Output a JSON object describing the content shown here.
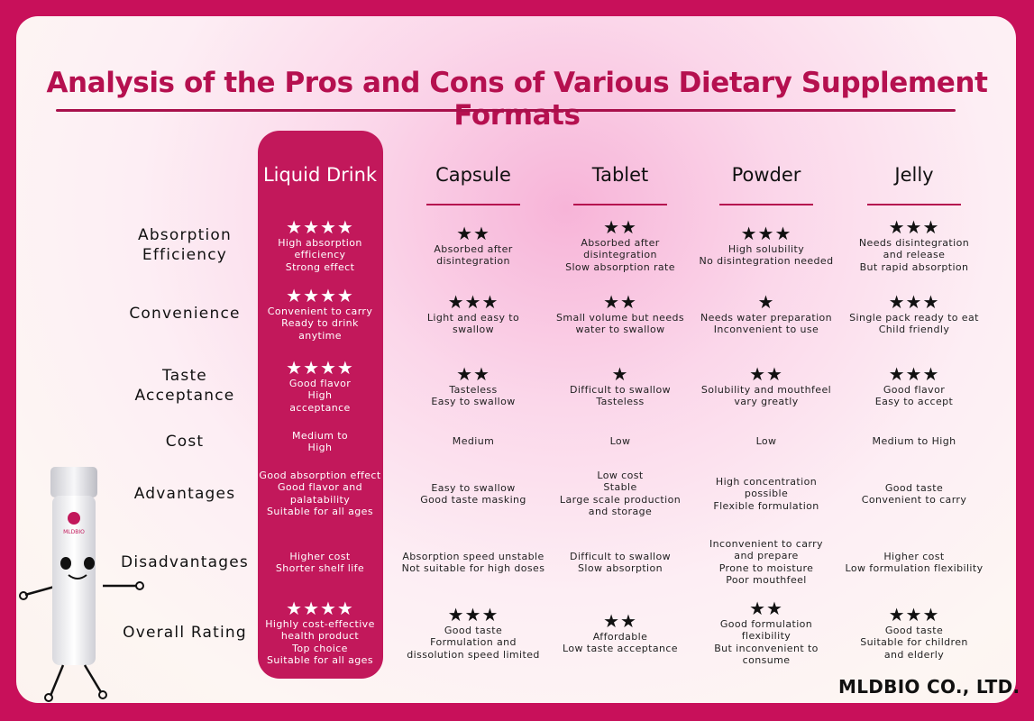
{
  "title": "Analysis of the Pros and Cons of Various Dietary Supplement Formats",
  "brand": "MLDBIO CO., LTD.",
  "mascot_logo": "MLDBIO",
  "colors": {
    "accent": "#c2185b",
    "border": "#c8105a"
  },
  "columns": [
    "Liquid Drink",
    "Capsule",
    "Tablet",
    "Powder",
    "Jelly"
  ],
  "rows": [
    {
      "label": [
        "Absorption",
        "Efficiency"
      ],
      "cells": [
        {
          "stars": "★★★★",
          "text": [
            "High absorption",
            "efficiency",
            "Strong effect"
          ]
        },
        {
          "stars": "★★",
          "text": [
            "Absorbed after",
            "disintegration"
          ]
        },
        {
          "stars": "★★",
          "text": [
            "Absorbed after",
            "disintegration",
            "Slow absorption rate"
          ]
        },
        {
          "stars": "★★★",
          "text": [
            "High solubility",
            "No disintegration needed"
          ]
        },
        {
          "stars": "★★★",
          "text": [
            "Needs disintegration",
            "and release",
            "But rapid absorption"
          ]
        }
      ]
    },
    {
      "label": [
        "Convenience"
      ],
      "cells": [
        {
          "stars": "★★★★",
          "text": [
            "Convenient to carry",
            "Ready to drink",
            "anytime"
          ]
        },
        {
          "stars": "★★★",
          "text": [
            "Light and easy to",
            "swallow"
          ]
        },
        {
          "stars": "★★",
          "text": [
            "Small volume but needs",
            "water to swallow"
          ]
        },
        {
          "stars": "★",
          "text": [
            "Needs water preparation",
            "Inconvenient to use"
          ]
        },
        {
          "stars": "★★★",
          "text": [
            "Single pack ready to eat",
            "Child friendly"
          ]
        }
      ]
    },
    {
      "label": [
        "Taste",
        "Acceptance"
      ],
      "cells": [
        {
          "stars": "★★★★",
          "text": [
            "Good flavor",
            "High",
            "acceptance"
          ]
        },
        {
          "stars": "★★",
          "text": [
            "Tasteless",
            "Easy to swallow"
          ]
        },
        {
          "stars": "★",
          "text": [
            "Difficult to swallow",
            "Tasteless"
          ]
        },
        {
          "stars": "★★",
          "text": [
            "Solubility and mouthfeel",
            "vary greatly"
          ]
        },
        {
          "stars": "★★★",
          "text": [
            "Good flavor",
            "Easy to accept"
          ]
        }
      ]
    },
    {
      "label": [
        "Cost"
      ],
      "cells": [
        {
          "stars": "",
          "text": [
            "Medium to",
            "High"
          ]
        },
        {
          "stars": "",
          "text": [
            "Medium"
          ]
        },
        {
          "stars": "",
          "text": [
            "Low"
          ]
        },
        {
          "stars": "",
          "text": [
            "Low"
          ]
        },
        {
          "stars": "",
          "text": [
            "Medium to High"
          ]
        }
      ]
    },
    {
      "label": [
        "Advantages"
      ],
      "cells": [
        {
          "stars": "",
          "text": [
            "Good absorption effect",
            "Good flavor and",
            "palatability",
            "Suitable for all ages"
          ]
        },
        {
          "stars": "",
          "text": [
            "Easy to swallow",
            "Good taste masking"
          ]
        },
        {
          "stars": "",
          "text": [
            "Low cost",
            "Stable",
            "Large scale production",
            "and storage"
          ]
        },
        {
          "stars": "",
          "text": [
            "High concentration",
            "possible",
            "Flexible formulation"
          ]
        },
        {
          "stars": "",
          "text": [
            "Good taste",
            "Convenient to carry"
          ]
        }
      ]
    },
    {
      "label": [
        "Disadvantages"
      ],
      "cells": [
        {
          "stars": "",
          "text": [
            "Higher cost",
            "Shorter shelf life"
          ]
        },
        {
          "stars": "",
          "text": [
            "Absorption speed unstable",
            "Not suitable for high doses"
          ]
        },
        {
          "stars": "",
          "text": [
            "Difficult to swallow",
            "Slow absorption"
          ]
        },
        {
          "stars": "",
          "text": [
            "Inconvenient to carry",
            "and prepare",
            "Prone to moisture",
            "Poor mouthfeel"
          ]
        },
        {
          "stars": "",
          "text": [
            "Higher cost",
            "Low formulation flexibility"
          ]
        }
      ]
    },
    {
      "label": [
        "Overall Rating"
      ],
      "cells": [
        {
          "stars": "★★★★",
          "text": [
            "Highly cost-effective",
            "health product",
            "Top choice",
            "Suitable for all ages"
          ]
        },
        {
          "stars": "★★★",
          "text": [
            "Good taste",
            "Formulation and",
            "dissolution speed limited"
          ]
        },
        {
          "stars": "★★",
          "text": [
            "Affordable",
            "Low taste acceptance"
          ]
        },
        {
          "stars": "★★",
          "text": [
            "Good formulation",
            "flexibility",
            "But inconvenient to",
            "consume"
          ]
        },
        {
          "stars": "★★★",
          "text": [
            "Good taste",
            "Suitable for children",
            "and elderly"
          ]
        }
      ]
    }
  ]
}
